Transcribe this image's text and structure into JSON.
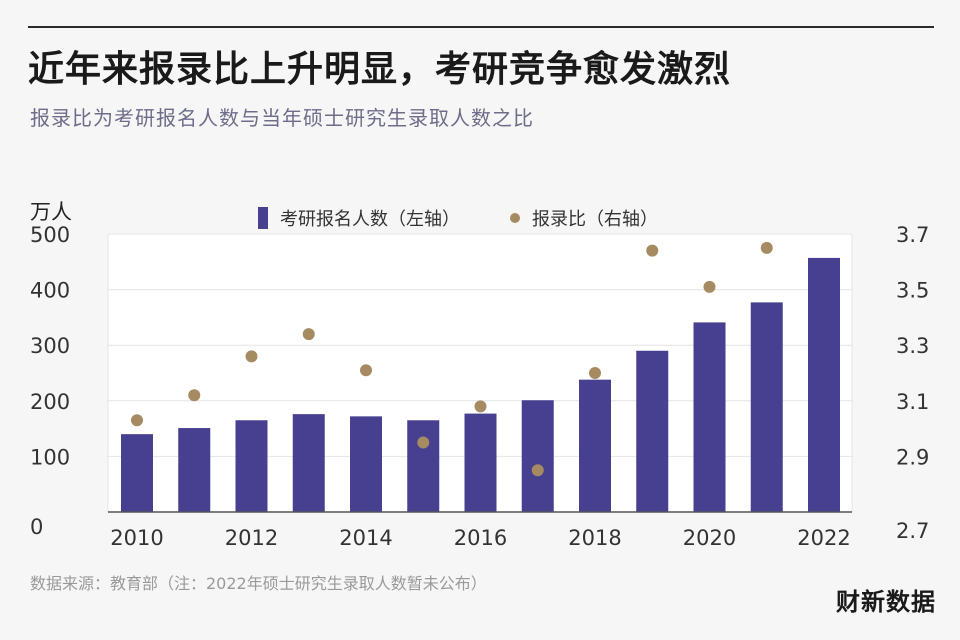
{
  "header": {
    "title": "近年来报录比上升明显，考研竞争愈发激烈",
    "subtitle": "报录比为考研报名人数与当年硕士研究生录取人数之比"
  },
  "chart_data": {
    "type": "bar",
    "unit_label": "万人",
    "x": [
      2010,
      2011,
      2012,
      2013,
      2014,
      2015,
      2016,
      2017,
      2018,
      2019,
      2020,
      2021,
      2022
    ],
    "x_tick_labels": [
      "2010",
      "2012",
      "2014",
      "2016",
      "2018",
      "2020",
      "2022"
    ],
    "series": [
      {
        "name": "考研报名人数（左轴）",
        "type": "bar",
        "axis": "left",
        "color": "#473f8f",
        "values": [
          140,
          151,
          165,
          176,
          172,
          165,
          177,
          201,
          238,
          290,
          341,
          377,
          457
        ]
      },
      {
        "name": "报录比（右轴）",
        "type": "scatter",
        "axis": "right",
        "color": "#a58a62",
        "values": [
          3.03,
          3.12,
          3.26,
          3.34,
          3.21,
          2.95,
          3.08,
          2.85,
          3.2,
          3.64,
          3.51,
          3.65
        ]
      }
    ],
    "y_left": {
      "lim": [
        0,
        500
      ],
      "ticks": [
        0,
        100,
        200,
        300,
        400,
        500
      ]
    },
    "y_right": {
      "lim": [
        2.7,
        3.7
      ],
      "ticks": [
        2.7,
        2.9,
        3.1,
        3.3,
        3.5,
        3.7
      ]
    },
    "grid": true,
    "legend_position": "top-center"
  },
  "footer": {
    "source": "数据来源：教育部（注：2022年硕士研究生录取人数暂未公布）",
    "brand": "财新数据"
  }
}
